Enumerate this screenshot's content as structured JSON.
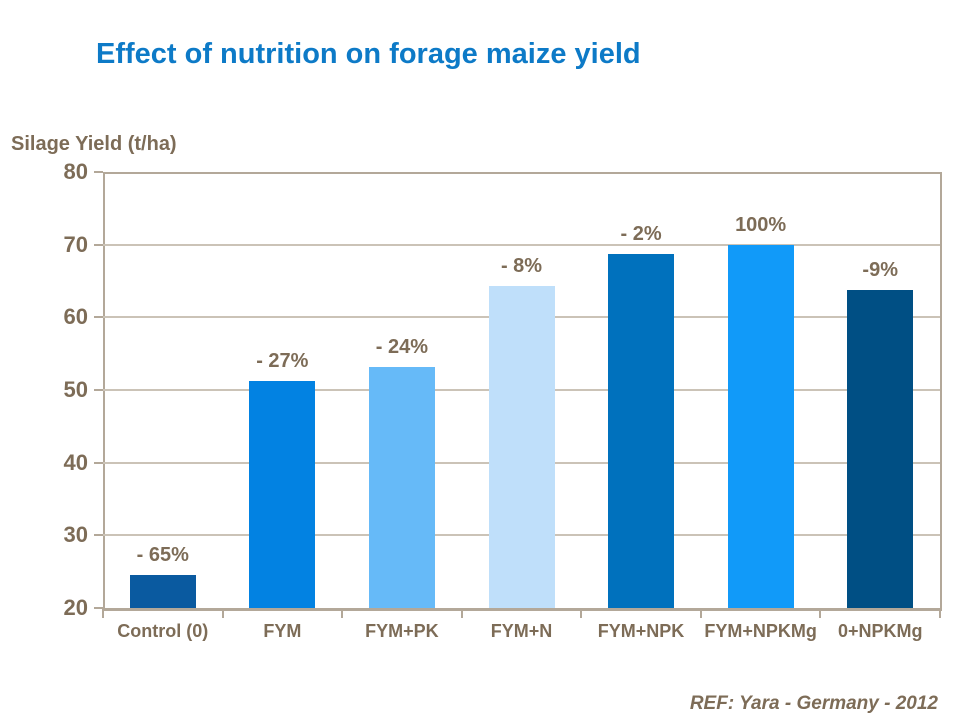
{
  "title": "Effect of nutrition on forage maize yield",
  "y_axis_title": "Silage Yield (t/ha)",
  "footer": {
    "ref": "REF: Yara - Germany - 2012"
  },
  "colors": {
    "title": "#0d7ac7",
    "axis_text": "#7d6c57",
    "grid": "#cbc3b7",
    "frame": "#b3a899"
  },
  "chart_data": {
    "type": "bar",
    "title": "Effect of nutrition on forage maize yield",
    "ylabel": "Silage Yield (t/ha)",
    "xlabel": "",
    "categories": [
      "Control (0)",
      "FYM",
      "FYM+PK",
      "FYM+N",
      "FYM+NPK",
      "FYM+NPKMg",
      "0+NPKMg"
    ],
    "values": [
      24.5,
      51.3,
      53.2,
      64.3,
      68.7,
      70,
      63.8
    ],
    "bar_labels": [
      "- 65%",
      "- 27%",
      "- 24%",
      "- 8%",
      "- 2%",
      "100%",
      "-9%"
    ],
    "bar_colors": [
      "#0a5aa0",
      "#0282e2",
      "#66baf8",
      "#bfdffa",
      "#0071bd",
      "#119af9",
      "#004f84"
    ],
    "ylim": [
      20,
      80
    ],
    "yticks": [
      20,
      30,
      40,
      50,
      60,
      70,
      80
    ],
    "grid": true,
    "legend": false,
    "annotation": "REF: Yara - Germany - 2012"
  }
}
